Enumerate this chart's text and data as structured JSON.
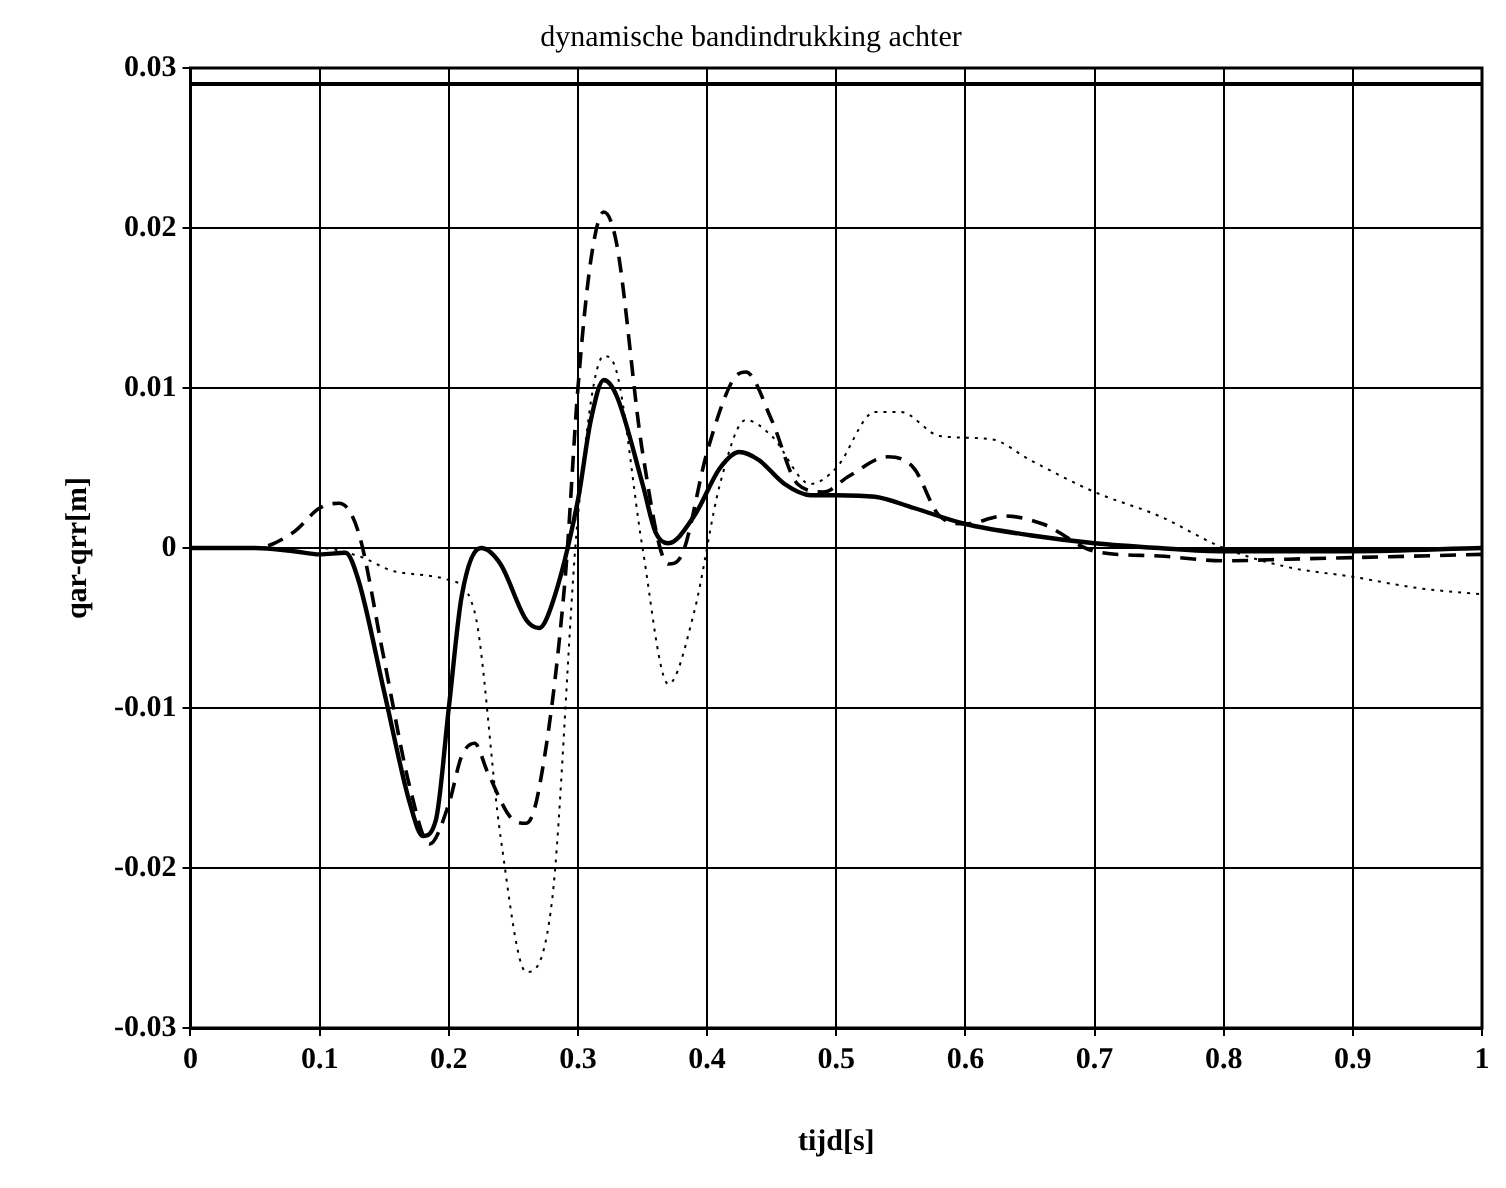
{
  "chart_data": {
    "type": "line",
    "title": "dynamische bandindrukking achter",
    "xlabel": "tijd[s]",
    "ylabel": "qar-qrr[m]",
    "xlim": [
      0,
      1
    ],
    "xticks": [
      0,
      0.1,
      0.2,
      0.3,
      0.4,
      0.5,
      0.6,
      0.7,
      0.8,
      0.9,
      1
    ],
    "ylim": [
      -0.03,
      0.03
    ],
    "yticks": [
      -0.03,
      -0.02,
      -0.01,
      0,
      0.01,
      0.02,
      0.03
    ],
    "grid": true,
    "legend": false,
    "marker": "none",
    "ref_lines": [
      {
        "axis": "y",
        "value": 0.029,
        "color": "#000000",
        "line_style": "solid"
      }
    ],
    "series": [
      {
        "color": "#000000",
        "line_style": "solid",
        "x": [
          0,
          0.05,
          0.08,
          0.1,
          0.12,
          0.13,
          0.15,
          0.17,
          0.18,
          0.19,
          0.2,
          0.21,
          0.225,
          0.24,
          0.26,
          0.27,
          0.28,
          0.3,
          0.31,
          0.32,
          0.33,
          0.35,
          0.36,
          0.37,
          0.39,
          0.41,
          0.425,
          0.44,
          0.46,
          0.48,
          0.5,
          0.53,
          0.56,
          0.6,
          0.65,
          0.7,
          0.75,
          0.8,
          0.9,
          1
        ],
        "values": [
          0,
          0,
          -0.0002,
          -0.0004,
          -0.0003,
          -0.002,
          -0.009,
          -0.016,
          -0.018,
          -0.017,
          -0.01,
          -0.003,
          0,
          -0.001,
          -0.0045,
          -0.005,
          -0.0035,
          0.003,
          0.008,
          0.0105,
          0.0095,
          0.004,
          0.001,
          0.0003,
          0.002,
          0.005,
          0.006,
          0.0055,
          0.004,
          0.0033,
          0.0033,
          0.0032,
          0.0025,
          0.0015,
          0.0008,
          0.0003,
          0,
          -0.0002,
          -0.0002,
          0
        ]
      },
      {
        "color": "#000000",
        "line_style": "dashed",
        "x": [
          0,
          0.05,
          0.08,
          0.1,
          0.115,
          0.13,
          0.15,
          0.17,
          0.185,
          0.2,
          0.21,
          0.22,
          0.23,
          0.25,
          0.26,
          0.27,
          0.29,
          0.3,
          0.31,
          0.32,
          0.33,
          0.35,
          0.37,
          0.38,
          0.4,
          0.42,
          0.43,
          0.45,
          0.47,
          0.49,
          0.51,
          0.54,
          0.56,
          0.58,
          0.6,
          0.63,
          0.66,
          0.7,
          0.75,
          0.8,
          0.85,
          0.9,
          1
        ],
        "values": [
          0,
          0,
          0.001,
          0.0025,
          0.0028,
          0.001,
          -0.007,
          -0.015,
          -0.0185,
          -0.016,
          -0.013,
          -0.0122,
          -0.014,
          -0.017,
          -0.0172,
          -0.015,
          -0.002,
          0.01,
          0.018,
          0.021,
          0.019,
          0.006,
          -0.001,
          -0.0005,
          0.006,
          0.0105,
          0.011,
          0.008,
          0.004,
          0.0035,
          0.0045,
          0.0057,
          0.005,
          0.002,
          0.0015,
          0.002,
          0.0015,
          -0.0002,
          -0.0005,
          -0.0008,
          -0.0007,
          -0.0006,
          -0.0004
        ]
      },
      {
        "color": "#000000",
        "line_style": "dotted",
        "x": [
          0,
          0.1,
          0.13,
          0.16,
          0.2,
          0.22,
          0.24,
          0.26,
          0.28,
          0.3,
          0.32,
          0.33,
          0.35,
          0.37,
          0.39,
          0.41,
          0.43,
          0.45,
          0.48,
          0.5,
          0.53,
          0.55,
          0.58,
          0.62,
          0.65,
          0.7,
          0.75,
          0.8,
          0.85,
          0.9,
          0.95,
          1
        ],
        "values": [
          0,
          0,
          -0.0005,
          -0.0015,
          -0.002,
          -0.004,
          -0.018,
          -0.0265,
          -0.022,
          0.002,
          0.012,
          0.011,
          0,
          -0.0085,
          -0.004,
          0.004,
          0.008,
          0.007,
          0.004,
          0.005,
          0.0085,
          0.0085,
          0.007,
          0.0068,
          0.0055,
          0.0035,
          0.002,
          0,
          -0.0012,
          -0.0018,
          -0.0025,
          -0.0029
        ]
      }
    ]
  }
}
